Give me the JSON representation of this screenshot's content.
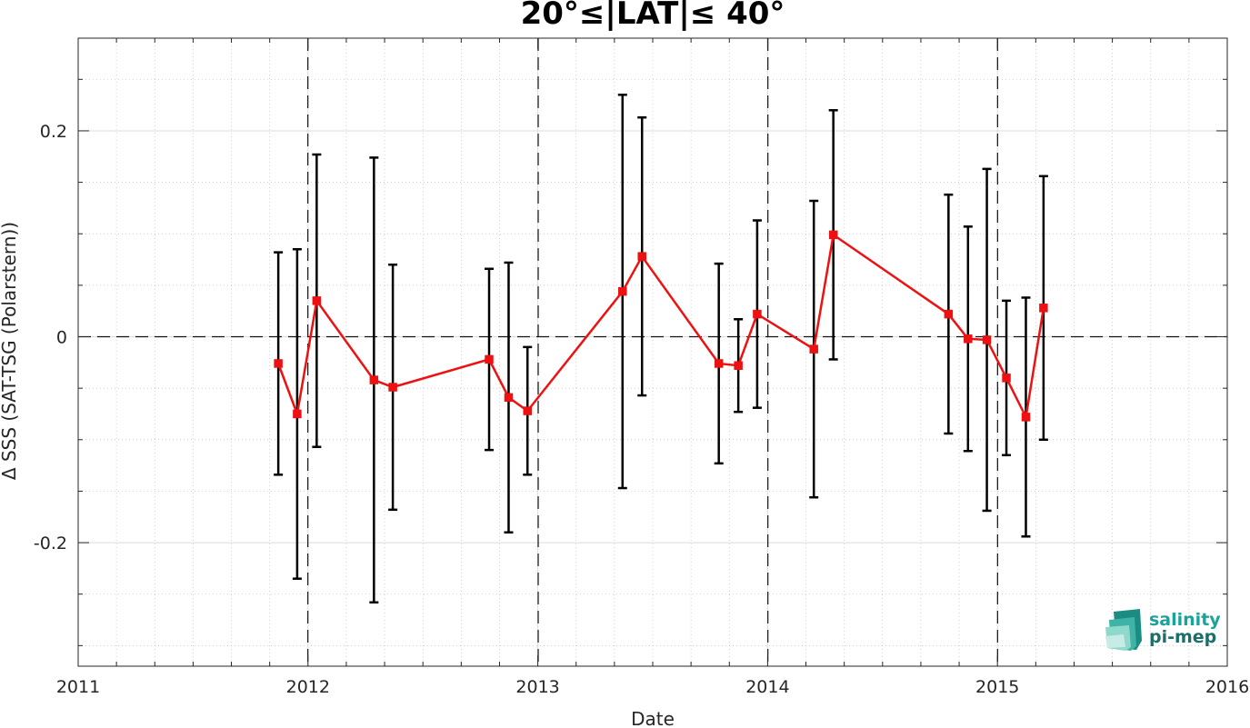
{
  "chart_data": {
    "type": "line",
    "title": "20°≤|LAT|≤ 40°",
    "xlabel": "Date",
    "ylabel": "Δ SSS (SAT-TSG (Polarstern))",
    "xlim": [
      "2011-01-01",
      "2016-01-01"
    ],
    "ylim": [
      -0.32,
      0.29
    ],
    "x_ticks": [
      "2011",
      "2012",
      "2013",
      "2014",
      "2015",
      "2016"
    ],
    "y_ticks": [
      {
        "value": -0.2,
        "label": "-0.2"
      },
      {
        "value": 0,
        "label": "0"
      },
      {
        "value": 0.2,
        "label": "0.2"
      }
    ],
    "grid": true,
    "minor_grid": true,
    "year_separators": [
      "2012-01-01",
      "2013-01-01",
      "2014-01-01",
      "2015-01-01"
    ],
    "zero_line": true,
    "series": [
      {
        "color": "#ee1111",
        "errorbar_color": "#000000",
        "marker": "square",
        "points": [
          {
            "x": "2011-11-15",
            "y": -0.026,
            "err": 0.108
          },
          {
            "x": "2011-12-15",
            "y": -0.075,
            "err": 0.16
          },
          {
            "x": "2012-01-15",
            "y": 0.035,
            "err": 0.142
          },
          {
            "x": "2012-04-15",
            "y": -0.042,
            "err": 0.216
          },
          {
            "x": "2012-05-15",
            "y": -0.049,
            "err": 0.119
          },
          {
            "x": "2012-10-15",
            "y": -0.022,
            "err": 0.088
          },
          {
            "x": "2012-11-15",
            "y": -0.059,
            "err": 0.131
          },
          {
            "x": "2012-12-15",
            "y": -0.072,
            "err": 0.062
          },
          {
            "x": "2013-05-15",
            "y": 0.044,
            "err": 0.191
          },
          {
            "x": "2013-06-15",
            "y": 0.078,
            "err": 0.135
          },
          {
            "x": "2013-10-15",
            "y": -0.026,
            "err": 0.097
          },
          {
            "x": "2013-11-15",
            "y": -0.028,
            "err": 0.045
          },
          {
            "x": "2013-12-15",
            "y": 0.022,
            "err": 0.091
          },
          {
            "x": "2014-03-15",
            "y": -0.012,
            "err": 0.144
          },
          {
            "x": "2014-04-15",
            "y": 0.099,
            "err": 0.121
          },
          {
            "x": "2014-10-15",
            "y": 0.022,
            "err": 0.116
          },
          {
            "x": "2014-11-15",
            "y": -0.002,
            "err": 0.109
          },
          {
            "x": "2014-12-15",
            "y": -0.003,
            "err": 0.166
          },
          {
            "x": "2015-01-15",
            "y": -0.04,
            "err": 0.075
          },
          {
            "x": "2015-02-15",
            "y": -0.078,
            "err": 0.116
          },
          {
            "x": "2015-03-15",
            "y": 0.028,
            "err": 0.128
          }
        ]
      }
    ]
  },
  "logo": {
    "line1": "salinity",
    "line2": "pi-mep",
    "color1": "#1aa39a",
    "color2": "#1c6f68"
  }
}
